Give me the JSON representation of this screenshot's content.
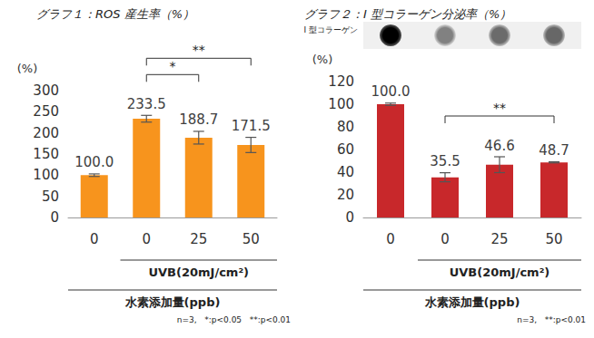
{
  "chart_data": [
    {
      "type": "bar",
      "title": "グラフ１：ROS 産生率（%）",
      "y_label": "(%)",
      "categories": [
        "0",
        "0",
        "25",
        "50"
      ],
      "values": [
        100.0,
        233.5,
        188.7,
        171.5
      ],
      "value_labels": [
        "100.0",
        "233.5",
        "188.7",
        "171.5"
      ],
      "errors": [
        3,
        8,
        15,
        18
      ],
      "color": "#f7941d",
      "ylim": [
        0,
        300
      ],
      "yticks": [
        0,
        50,
        100,
        150,
        200,
        250,
        300
      ],
      "grid": false,
      "data_labels": true,
      "groups": [
        {
          "label": "UVB(20mJ/cm²)",
          "from": 1,
          "to": 3
        },
        {
          "label": "水素添加量(ppb)",
          "from": 0,
          "to": 3
        }
      ],
      "significance": [
        {
          "from": 1,
          "to": 2,
          "label": "*"
        },
        {
          "from": 1,
          "to": 3,
          "label": "**"
        }
      ],
      "note": "n=3,   *:p<0.05   **:p<0.01"
    },
    {
      "type": "bar",
      "title": "グラフ２：I 型コラーゲン分泌率（%）",
      "y_label": "(%)",
      "blot_label": "I 型コラーゲン",
      "categories": [
        "0",
        "0",
        "25",
        "50"
      ],
      "values": [
        100.0,
        35.5,
        46.6,
        48.7
      ],
      "value_labels": [
        "100.0",
        "35.5",
        "46.6",
        "48.7"
      ],
      "errors": [
        1,
        4,
        7,
        0.5
      ],
      "color": "#c8282b",
      "ylim": [
        0,
        120
      ],
      "yticks": [
        0,
        20,
        40,
        60,
        80,
        100,
        120
      ],
      "grid": false,
      "data_labels": true,
      "groups": [
        {
          "label": "UVB(20mJ/cm²)",
          "from": 1,
          "to": 3
        },
        {
          "label": "水素添加量(ppb)",
          "from": 0,
          "to": 3
        }
      ],
      "significance": [
        {
          "from": 1,
          "to": 3,
          "label": "**"
        }
      ],
      "note": "n=3,   **:p<0.01"
    }
  ]
}
